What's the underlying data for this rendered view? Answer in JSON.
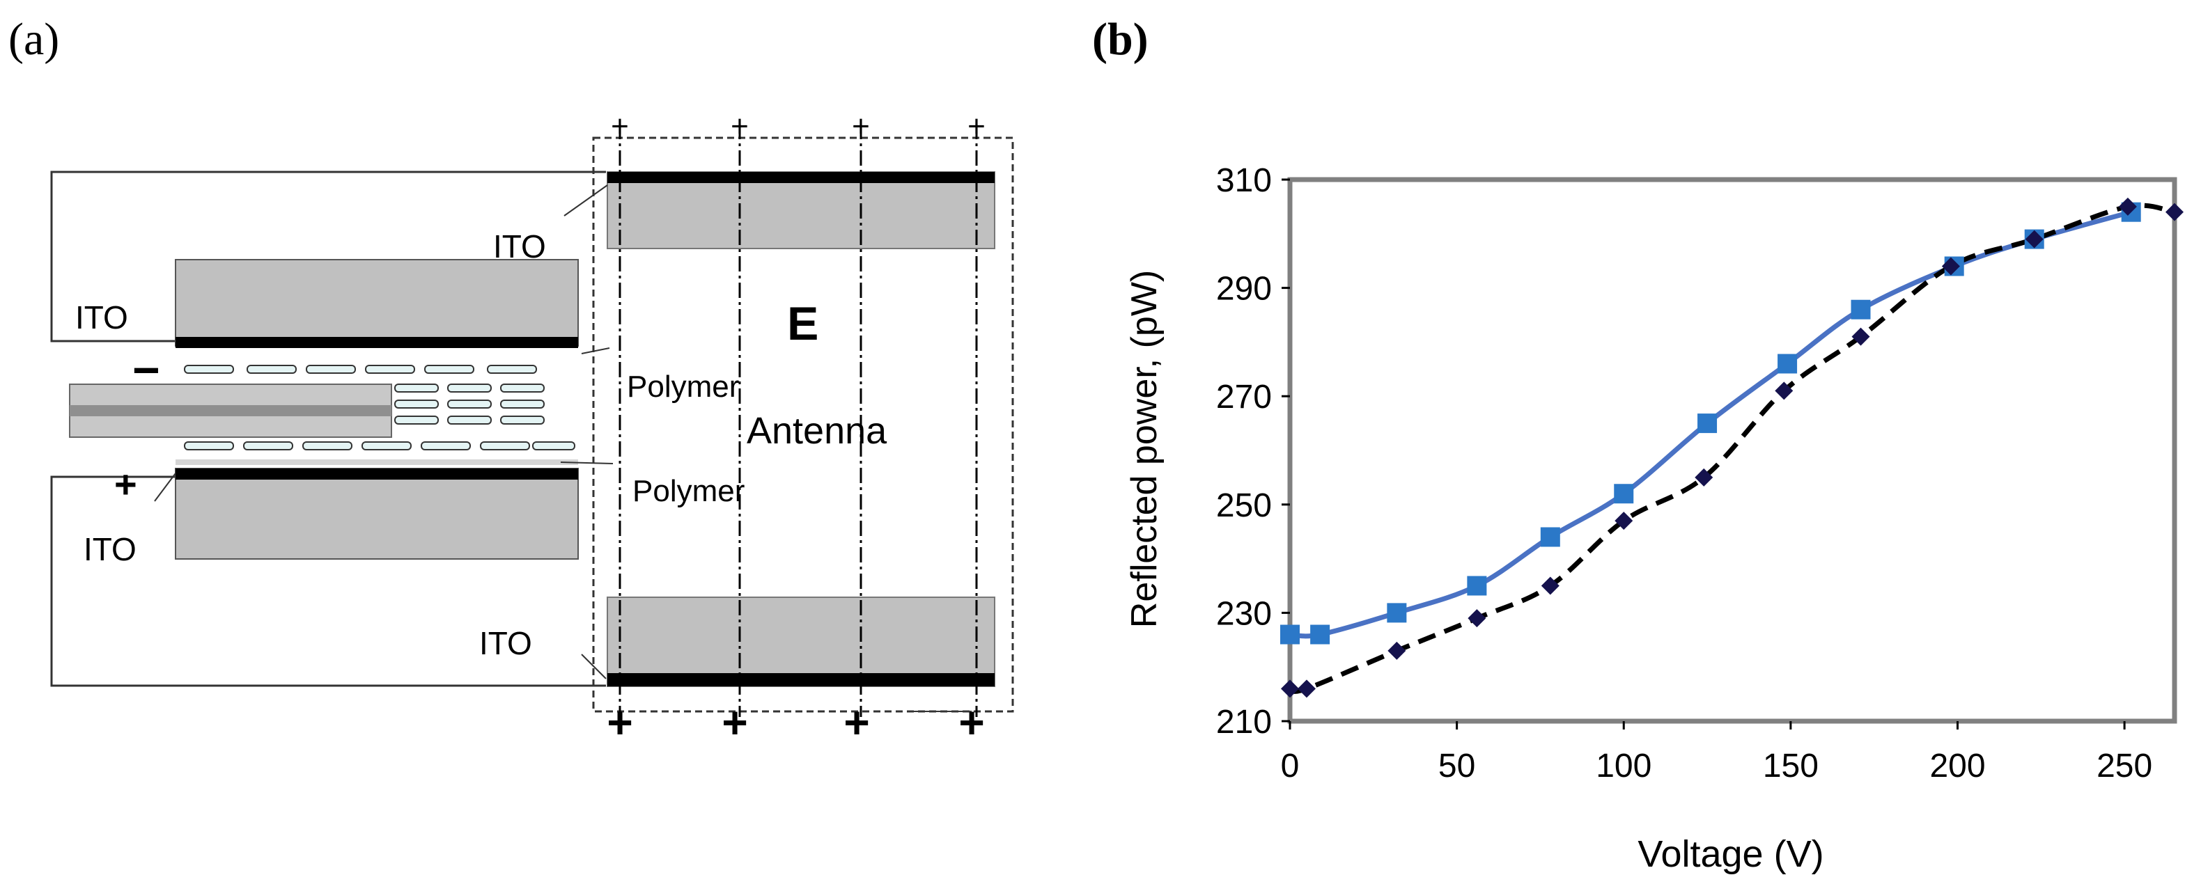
{
  "panel_a": {
    "tag": "(a)",
    "labels": {
      "ito_top_right": "ITO",
      "ito_left_top": "ITO",
      "ito_left_bottom": "ITO",
      "ito_bottom_right": "ITO",
      "field": "E",
      "antenna": "Antenna",
      "polymer_top": "Polymer",
      "polymer_bottom": "Polymer",
      "minus_sign": "−",
      "plus_sign": "+"
    },
    "top_markers": [
      "+",
      "+",
      "+",
      "+"
    ],
    "bottom_markers": [
      "+",
      "+",
      "+",
      "+"
    ]
  },
  "panel_b": {
    "tag": "(b)"
  },
  "chart_data": {
    "type": "line",
    "title": "",
    "xlabel": "Voltage (V)",
    "ylabel": "Reflected power,  (pW)",
    "xlim": [
      0,
      265
    ],
    "ylim": [
      210,
      310
    ],
    "xticks": [
      "0",
      "50",
      "100",
      "150",
      "200",
      "250"
    ],
    "yticks": [
      "210",
      "230",
      "250",
      "270",
      "290",
      "310"
    ],
    "grid": false,
    "series": [
      {
        "name": "squares",
        "marker": "square",
        "color": "#2b78c8",
        "line_color": "#4a72c4",
        "line_style": "solid",
        "x": [
          0,
          9,
          32,
          56,
          78,
          100,
          125,
          149,
          171,
          199,
          223,
          252
        ],
        "y": [
          226,
          226,
          230,
          235,
          244,
          252,
          265,
          276,
          286,
          294,
          299,
          304
        ]
      },
      {
        "name": "diamonds",
        "marker": "diamond",
        "color": "#15124d",
        "line_color": "#000000",
        "line_style": "dashed",
        "x": [
          0,
          5,
          32,
          56,
          78,
          100,
          124,
          148,
          171,
          198,
          223,
          251,
          265
        ],
        "y": [
          216,
          216,
          223,
          229,
          235,
          247,
          255,
          271,
          281,
          294,
          299,
          305,
          304
        ]
      }
    ]
  }
}
